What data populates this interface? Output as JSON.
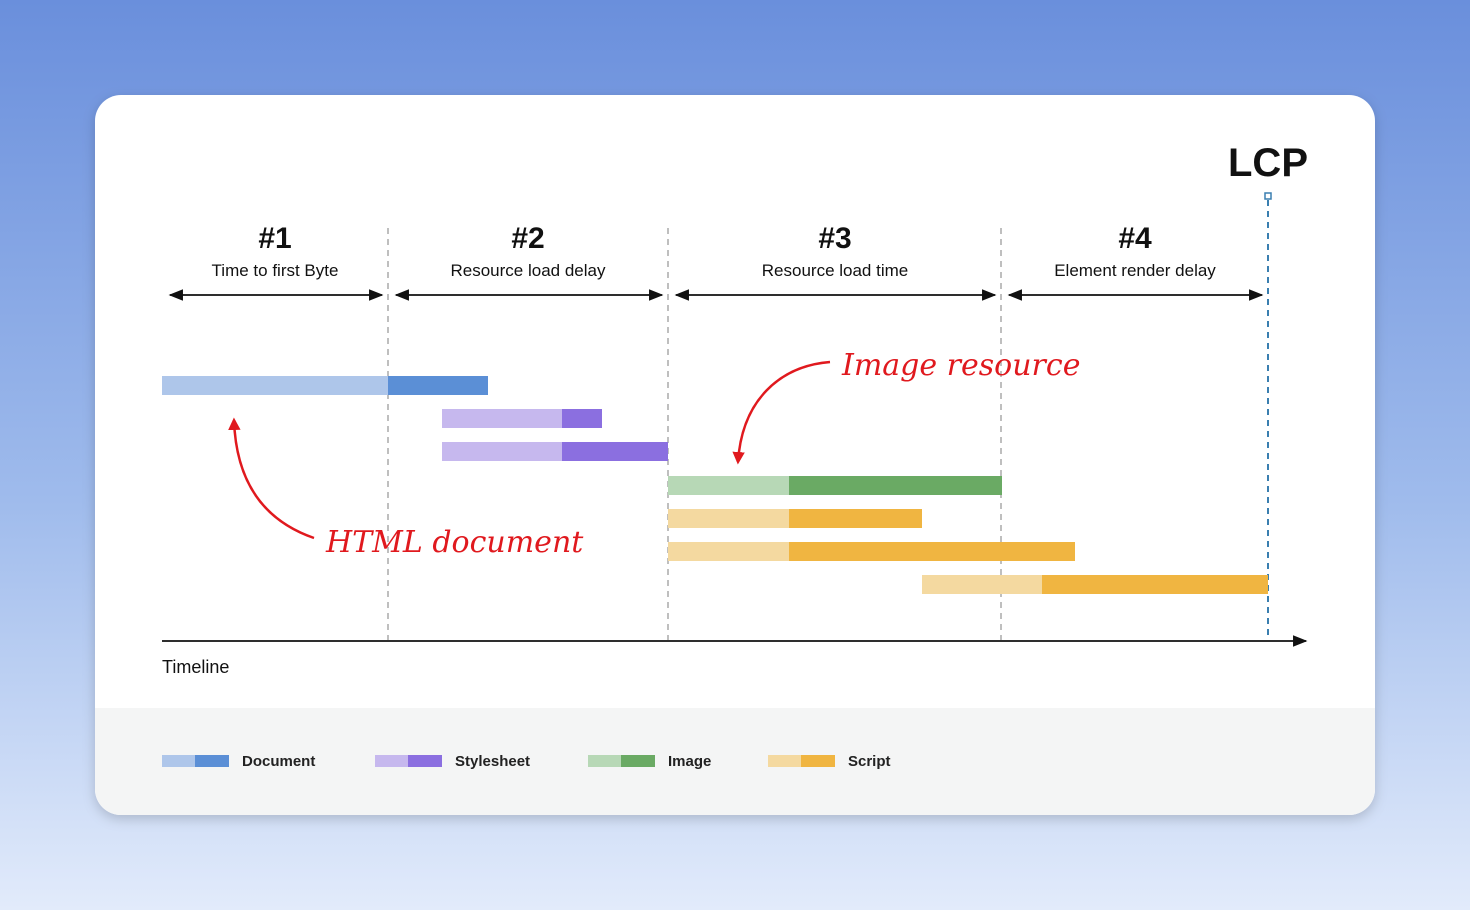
{
  "lcp_label": "LCP",
  "phases": [
    {
      "number": "#1",
      "label": "Time to first Byte"
    },
    {
      "number": "#2",
      "label": "Resource load delay"
    },
    {
      "number": "#3",
      "label": "Resource load time"
    },
    {
      "number": "#4",
      "label": "Element render delay"
    }
  ],
  "annotations": {
    "image": "Image resource",
    "html": "HTML document"
  },
  "axis_label": "Timeline",
  "legend": [
    "Document",
    "Stylesheet",
    "Image",
    "Script"
  ]
}
